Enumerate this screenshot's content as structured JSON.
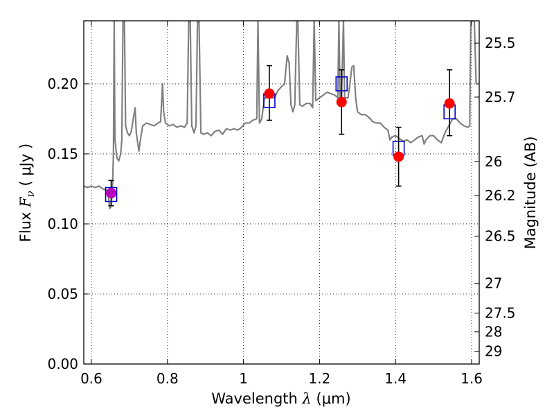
{
  "chart_data": {
    "type": "scatter",
    "xlabel": "Wavelength  λ (μm)",
    "ylabel": "Flux  F_ν  ( μJy )",
    "ylabel_right": "Magnitude (AB)",
    "xlim": [
      0.58,
      1.62
    ],
    "ylim": [
      0.0,
      0.245
    ],
    "grid": true,
    "x_ticks": [
      {
        "value": 0.6,
        "label": "0.6"
      },
      {
        "value": 0.8,
        "label": "0.8"
      },
      {
        "value": 1.0,
        "label": "1"
      },
      {
        "value": 1.2,
        "label": "1.2"
      },
      {
        "value": 1.4,
        "label": "1.4"
      },
      {
        "value": 1.6,
        "label": "1.6"
      }
    ],
    "y_ticks": [
      {
        "value": 0.0,
        "label": "0.00"
      },
      {
        "value": 0.05,
        "label": "0.05"
      },
      {
        "value": 0.1,
        "label": "0.10"
      },
      {
        "value": 0.15,
        "label": "0.15"
      },
      {
        "value": 0.2,
        "label": "0.20"
      }
    ],
    "right_ticks": [
      {
        "label": "25.5",
        "value": 25.5
      },
      {
        "label": "25.7",
        "value": 25.7
      },
      {
        "label": "26",
        "value": 26.0
      },
      {
        "label": "26.2",
        "value": 26.2
      },
      {
        "label": "26.5",
        "value": 26.5
      },
      {
        "label": "27",
        "value": 27.0
      },
      {
        "label": "27.5",
        "value": 27.5
      },
      {
        "label": "28",
        "value": 28.0
      },
      {
        "label": "29",
        "value": 29.0
      }
    ],
    "series": [
      {
        "kind": "spectrum",
        "color": "#808080",
        "points": [
          [
            0.58,
            0.127
          ],
          [
            0.59,
            0.126
          ],
          [
            0.6,
            0.127
          ],
          [
            0.61,
            0.126
          ],
          [
            0.62,
            0.127
          ],
          [
            0.63,
            0.125
          ],
          [
            0.64,
            0.124
          ],
          [
            0.645,
            0.12
          ],
          [
            0.648,
            0.111
          ],
          [
            0.651,
            0.112
          ],
          [
            0.655,
            0.122
          ],
          [
            0.658,
            0.15
          ],
          [
            0.66,
            0.245
          ],
          [
            0.662,
            0.16
          ],
          [
            0.667,
            0.147
          ],
          [
            0.672,
            0.145
          ],
          [
            0.677,
            0.15
          ],
          [
            0.68,
            0.16
          ],
          [
            0.683,
            0.245
          ],
          [
            0.687,
            0.245
          ],
          [
            0.69,
            0.17
          ],
          [
            0.695,
            0.165
          ],
          [
            0.7,
            0.163
          ],
          [
            0.705,
            0.166
          ],
          [
            0.71,
            0.175
          ],
          [
            0.715,
            0.183
          ],
          [
            0.718,
            0.165
          ],
          [
            0.725,
            0.152
          ],
          [
            0.73,
            0.162
          ],
          [
            0.735,
            0.17
          ],
          [
            0.745,
            0.172
          ],
          [
            0.755,
            0.171
          ],
          [
            0.765,
            0.17
          ],
          [
            0.775,
            0.172
          ],
          [
            0.782,
            0.173
          ],
          [
            0.787,
            0.2
          ],
          [
            0.79,
            0.18
          ],
          [
            0.795,
            0.172
          ],
          [
            0.805,
            0.17
          ],
          [
            0.815,
            0.171
          ],
          [
            0.825,
            0.169
          ],
          [
            0.835,
            0.17
          ],
          [
            0.845,
            0.169
          ],
          [
            0.852,
            0.172
          ],
          [
            0.856,
            0.245
          ],
          [
            0.86,
            0.245
          ],
          [
            0.864,
            0.17
          ],
          [
            0.87,
            0.165
          ],
          [
            0.875,
            0.17
          ],
          [
            0.879,
            0.245
          ],
          [
            0.883,
            0.245
          ],
          [
            0.888,
            0.165
          ],
          [
            0.895,
            0.164
          ],
          [
            0.905,
            0.165
          ],
          [
            0.915,
            0.163
          ],
          [
            0.925,
            0.166
          ],
          [
            0.935,
            0.167
          ],
          [
            0.945,
            0.164
          ],
          [
            0.955,
            0.168
          ],
          [
            0.965,
            0.167
          ],
          [
            0.975,
            0.168
          ],
          [
            0.985,
            0.167
          ],
          [
            0.995,
            0.169
          ],
          [
            1.005,
            0.172
          ],
          [
            1.015,
            0.172
          ],
          [
            1.025,
            0.174
          ],
          [
            1.035,
            0.175
          ],
          [
            1.038,
            0.245
          ],
          [
            1.042,
            0.172
          ],
          [
            1.048,
            0.175
          ],
          [
            1.055,
            0.19
          ],
          [
            1.062,
            0.19
          ],
          [
            1.067,
            0.192
          ],
          [
            1.075,
            0.19
          ],
          [
            1.082,
            0.19
          ],
          [
            1.09,
            0.195
          ],
          [
            1.1,
            0.198
          ],
          [
            1.108,
            0.2
          ],
          [
            1.115,
            0.22
          ],
          [
            1.12,
            0.215
          ],
          [
            1.125,
            0.185
          ],
          [
            1.13,
            0.18
          ],
          [
            1.135,
            0.185
          ],
          [
            1.14,
            0.245
          ],
          [
            1.143,
            0.245
          ],
          [
            1.148,
            0.185
          ],
          [
            1.155,
            0.184
          ],
          [
            1.165,
            0.186
          ],
          [
            1.175,
            0.186
          ],
          [
            1.182,
            0.183
          ],
          [
            1.186,
            0.245
          ],
          [
            1.19,
            0.188
          ],
          [
            1.2,
            0.19
          ],
          [
            1.21,
            0.192
          ],
          [
            1.22,
            0.194
          ],
          [
            1.23,
            0.193
          ],
          [
            1.24,
            0.192
          ],
          [
            1.248,
            0.19
          ],
          [
            1.251,
            0.245
          ],
          [
            1.254,
            0.19
          ],
          [
            1.258,
            0.19
          ],
          [
            1.263,
            0.245
          ],
          [
            1.266,
            0.19
          ],
          [
            1.27,
            0.19
          ],
          [
            1.275,
            0.19
          ],
          [
            1.28,
            0.2
          ],
          [
            1.285,
            0.212
          ],
          [
            1.29,
            0.213
          ],
          [
            1.295,
            0.19
          ],
          [
            1.3,
            0.18
          ],
          [
            1.31,
            0.178
          ],
          [
            1.32,
            0.178
          ],
          [
            1.33,
            0.176
          ],
          [
            1.34,
            0.173
          ],
          [
            1.35,
            0.172
          ],
          [
            1.36,
            0.172
          ],
          [
            1.37,
            0.169
          ],
          [
            1.38,
            0.167
          ],
          [
            1.385,
            0.16
          ],
          [
            1.39,
            0.162
          ],
          [
            1.4,
            0.163
          ],
          [
            1.41,
            0.161
          ],
          [
            1.42,
            0.159
          ],
          [
            1.43,
            0.16
          ],
          [
            1.44,
            0.158
          ],
          [
            1.45,
            0.16
          ],
          [
            1.46,
            0.162
          ],
          [
            1.47,
            0.163
          ],
          [
            1.475,
            0.157
          ],
          [
            1.48,
            0.16
          ],
          [
            1.49,
            0.163
          ],
          [
            1.5,
            0.163
          ],
          [
            1.51,
            0.16
          ],
          [
            1.52,
            0.158
          ],
          [
            1.53,
            0.165
          ],
          [
            1.54,
            0.17
          ],
          [
            1.55,
            0.175
          ],
          [
            1.56,
            0.175
          ],
          [
            1.57,
            0.172
          ],
          [
            1.58,
            0.17
          ],
          [
            1.59,
            0.169
          ],
          [
            1.595,
            0.17
          ],
          [
            1.598,
            0.245
          ],
          [
            1.602,
            0.245
          ],
          [
            1.607,
            0.245
          ],
          [
            1.612,
            0.2
          ],
          [
            1.62,
            0.2
          ]
        ]
      },
      {
        "kind": "model-boxes",
        "color": "#0000cc",
        "points": [
          [
            0.652,
            0.121
          ],
          [
            1.068,
            0.188
          ],
          [
            1.258,
            0.2
          ],
          [
            1.408,
            0.154
          ],
          [
            1.542,
            0.18
          ]
        ]
      },
      {
        "kind": "observed",
        "color": "#ff0000",
        "points": [
          [
            1.068,
            0.193
          ],
          [
            1.258,
            0.187
          ],
          [
            1.408,
            0.148
          ],
          [
            1.542,
            0.186
          ]
        ],
        "errors": [
          [
            0.174,
            0.213
          ],
          [
            0.164,
            0.21
          ],
          [
            0.127,
            0.169
          ],
          [
            0.163,
            0.21
          ]
        ]
      },
      {
        "kind": "observed-alt",
        "color": "#bb00bb",
        "points": [
          [
            0.652,
            0.122
          ]
        ],
        "errors": [
          [
            0.113,
            0.131
          ]
        ]
      }
    ]
  }
}
